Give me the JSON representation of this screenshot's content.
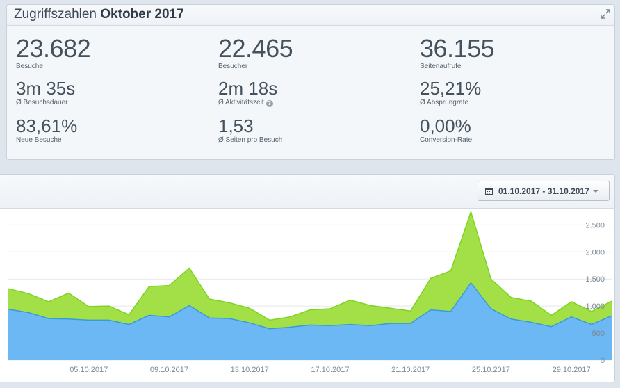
{
  "header": {
    "title_prefix": "Zugriffszahlen",
    "title_month": "Oktober 2017"
  },
  "stats": [
    {
      "value": "23.682",
      "label": "Besuche"
    },
    {
      "value": "22.465",
      "label": "Besucher"
    },
    {
      "value": "36.155",
      "label": "Seitenaufrufe"
    },
    {
      "value": "3m 35s",
      "label": "Ø Besuchsdauer"
    },
    {
      "value": "2m 18s",
      "label": "Ø Aktivitätszeit"
    },
    {
      "value": "25,21%",
      "label": "Ø Absprungrate"
    },
    {
      "value": "83,61%",
      "label": "Neue Besuche"
    },
    {
      "value": "1,53",
      "label": "Ø Seiten pro Besuch"
    },
    {
      "value": "0,00%",
      "label": "Conversion-Rate"
    }
  ],
  "help_glyph": "?",
  "date_range": {
    "label": "01.10.2017 - 31.10.2017"
  },
  "icons": [
    "expand-icon",
    "help-icon",
    "calendar-icon",
    "chevron-down-icon"
  ],
  "colors": {
    "visits": "#a3e048",
    "visitors": "#6cb8f5",
    "visits_line": "#7ed321",
    "visitors_line": "#3a9ad9"
  },
  "chart_data": {
    "type": "area",
    "x": [
      "01.10.2017",
      "02.10.2017",
      "03.10.2017",
      "04.10.2017",
      "05.10.2017",
      "06.10.2017",
      "07.10.2017",
      "08.10.2017",
      "09.10.2017",
      "10.10.2017",
      "11.10.2017",
      "12.10.2017",
      "13.10.2017",
      "14.10.2017",
      "15.10.2017",
      "16.10.2017",
      "17.10.2017",
      "18.10.2017",
      "19.10.2017",
      "20.10.2017",
      "21.10.2017",
      "22.10.2017",
      "23.10.2017",
      "24.10.2017",
      "25.10.2017",
      "26.10.2017",
      "27.10.2017",
      "28.10.2017",
      "29.10.2017",
      "30.10.2017",
      "31.10.2017"
    ],
    "x_tick_labels": [
      "05.10.2017",
      "09.10.2017",
      "13.10.2017",
      "17.10.2017",
      "21.10.2017",
      "25.10.2017",
      "29.10.2017"
    ],
    "x_tick_indices": [
      4,
      8,
      12,
      16,
      20,
      24,
      28
    ],
    "series": [
      {
        "values": [
          1320,
          1230,
          1080,
          1240,
          990,
          1000,
          840,
          1360,
          1380,
          1700,
          1130,
          1060,
          960,
          740,
          800,
          930,
          950,
          1110,
          1010,
          960,
          910,
          1510,
          1650,
          2740,
          1500,
          1160,
          1090,
          830,
          1080,
          900,
          1090
        ]
      },
      {
        "values": [
          940,
          880,
          770,
          760,
          740,
          740,
          660,
          830,
          800,
          1010,
          780,
          770,
          690,
          580,
          610,
          650,
          640,
          660,
          640,
          680,
          680,
          930,
          900,
          1430,
          950,
          760,
          700,
          620,
          800,
          660,
          820
        ]
      }
    ],
    "y_ticks": [
      0,
      500,
      1000,
      1500,
      2000,
      2500
    ],
    "y_tick_labels": [
      "0",
      "500",
      "1.000",
      "1.500",
      "2.000",
      "2.500"
    ],
    "ylim": [
      0,
      2800
    ]
  }
}
